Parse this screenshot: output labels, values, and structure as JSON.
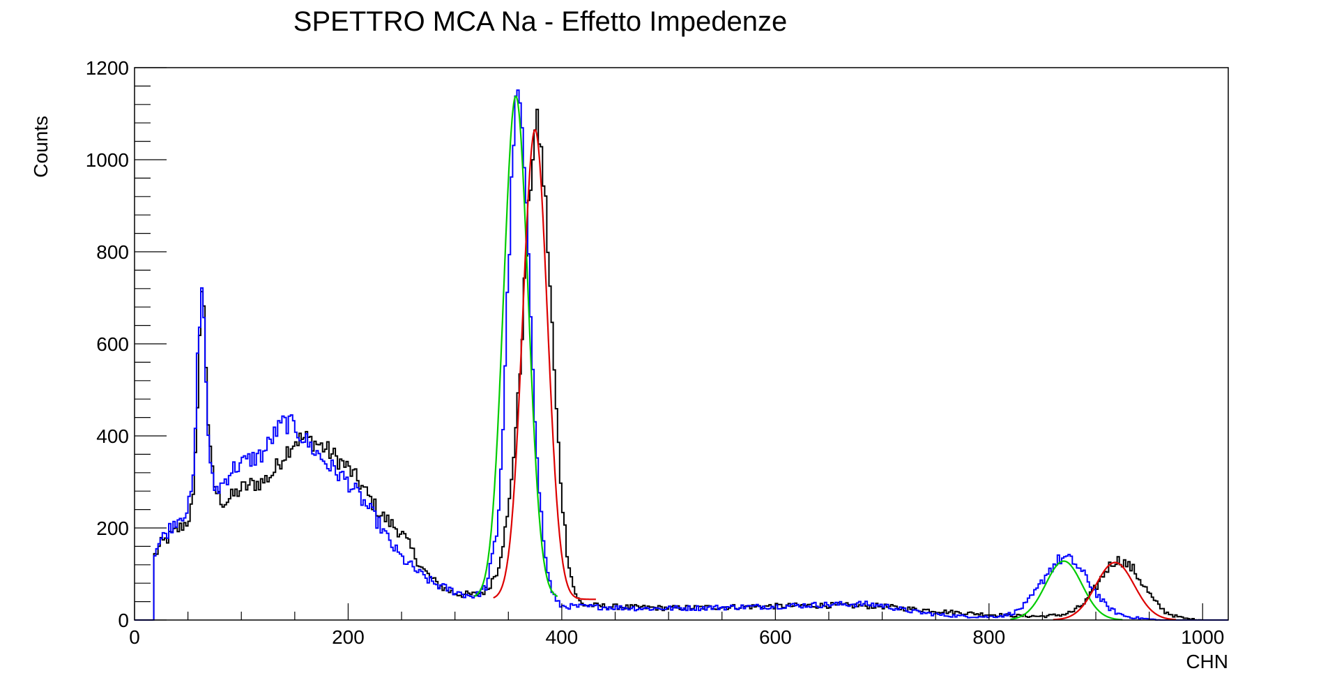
{
  "chart_data": {
    "type": "line",
    "title": "SPETTRO MCA Na - Effetto Impedenze",
    "xlabel": "CHN",
    "ylabel": "Counts",
    "xlim": [
      0,
      1024
    ],
    "ylim": [
      0,
      1200
    ],
    "x_ticks": [
      0,
      200,
      400,
      600,
      800,
      1000
    ],
    "y_ticks": [
      0,
      200,
      400,
      600,
      800,
      1000,
      1200
    ],
    "grid": false,
    "series": [
      {
        "color": "#000000",
        "step": true,
        "points": [
          [
            0,
            0
          ],
          [
            18,
            0
          ],
          [
            19,
            140
          ],
          [
            25,
            165
          ],
          [
            30,
            175
          ],
          [
            35,
            185
          ],
          [
            40,
            195
          ],
          [
            45,
            205
          ],
          [
            50,
            215
          ],
          [
            55,
            260
          ],
          [
            57,
            350
          ],
          [
            59,
            480
          ],
          [
            61,
            620
          ],
          [
            63,
            700
          ],
          [
            65,
            690
          ],
          [
            67,
            560
          ],
          [
            69,
            430
          ],
          [
            71,
            360
          ],
          [
            74,
            300
          ],
          [
            78,
            270
          ],
          [
            84,
            255
          ],
          [
            90,
            265
          ],
          [
            100,
            285
          ],
          [
            110,
            295
          ],
          [
            120,
            300
          ],
          [
            130,
            320
          ],
          [
            140,
            360
          ],
          [
            150,
            390
          ],
          [
            160,
            395
          ],
          [
            170,
            385
          ],
          [
            180,
            370
          ],
          [
            190,
            350
          ],
          [
            200,
            330
          ],
          [
            210,
            300
          ],
          [
            220,
            265
          ],
          [
            230,
            230
          ],
          [
            240,
            210
          ],
          [
            250,
            190
          ],
          [
            260,
            150
          ],
          [
            270,
            110
          ],
          [
            280,
            85
          ],
          [
            290,
            68
          ],
          [
            300,
            58
          ],
          [
            310,
            55
          ],
          [
            320,
            55
          ],
          [
            330,
            65
          ],
          [
            340,
            110
          ],
          [
            350,
            230
          ],
          [
            360,
            500
          ],
          [
            365,
            720
          ],
          [
            370,
            920
          ],
          [
            374,
            1050
          ],
          [
            377,
            1075
          ],
          [
            380,
            1040
          ],
          [
            385,
            900
          ],
          [
            390,
            680
          ],
          [
            395,
            450
          ],
          [
            400,
            270
          ],
          [
            405,
            150
          ],
          [
            410,
            80
          ],
          [
            415,
            45
          ],
          [
            420,
            33
          ],
          [
            440,
            30
          ],
          [
            460,
            28
          ],
          [
            500,
            26
          ],
          [
            550,
            28
          ],
          [
            600,
            30
          ],
          [
            650,
            32
          ],
          [
            700,
            30
          ],
          [
            720,
            25
          ],
          [
            740,
            22
          ],
          [
            760,
            18
          ],
          [
            780,
            15
          ],
          [
            800,
            12
          ],
          [
            830,
            9
          ],
          [
            850,
            8
          ],
          [
            870,
            12
          ],
          [
            880,
            20
          ],
          [
            890,
            38
          ],
          [
            900,
            70
          ],
          [
            910,
            110
          ],
          [
            918,
            130
          ],
          [
            925,
            128
          ],
          [
            935,
            110
          ],
          [
            945,
            75
          ],
          [
            955,
            40
          ],
          [
            965,
            18
          ],
          [
            975,
            8
          ],
          [
            985,
            3
          ],
          [
            1000,
            0
          ],
          [
            1024,
            0
          ]
        ]
      },
      {
        "color": "#0000ff",
        "step": true,
        "points": [
          [
            0,
            0
          ],
          [
            18,
            0
          ],
          [
            19,
            150
          ],
          [
            25,
            175
          ],
          [
            30,
            190
          ],
          [
            35,
            205
          ],
          [
            40,
            220
          ],
          [
            45,
            230
          ],
          [
            50,
            240
          ],
          [
            55,
            300
          ],
          [
            57,
            420
          ],
          [
            59,
            560
          ],
          [
            61,
            660
          ],
          [
            63,
            705
          ],
          [
            65,
            660
          ],
          [
            67,
            520
          ],
          [
            69,
            410
          ],
          [
            71,
            330
          ],
          [
            74,
            290
          ],
          [
            78,
            285
          ],
          [
            84,
            300
          ],
          [
            90,
            325
          ],
          [
            100,
            340
          ],
          [
            110,
            350
          ],
          [
            120,
            360
          ],
          [
            130,
            400
          ],
          [
            140,
            430
          ],
          [
            150,
            420
          ],
          [
            160,
            390
          ],
          [
            170,
            365
          ],
          [
            180,
            340
          ],
          [
            190,
            320
          ],
          [
            200,
            300
          ],
          [
            210,
            270
          ],
          [
            220,
            240
          ],
          [
            230,
            205
          ],
          [
            240,
            165
          ],
          [
            250,
            135
          ],
          [
            260,
            115
          ],
          [
            270,
            95
          ],
          [
            280,
            80
          ],
          [
            290,
            70
          ],
          [
            300,
            62
          ],
          [
            310,
            55
          ],
          [
            320,
            52
          ],
          [
            330,
            75
          ],
          [
            340,
            200
          ],
          [
            345,
            420
          ],
          [
            350,
            760
          ],
          [
            355,
            1050
          ],
          [
            358,
            1140
          ],
          [
            361,
            1120
          ],
          [
            365,
            980
          ],
          [
            370,
            720
          ],
          [
            375,
            450
          ],
          [
            380,
            250
          ],
          [
            385,
            130
          ],
          [
            390,
            70
          ],
          [
            395,
            40
          ],
          [
            400,
            30
          ],
          [
            440,
            28
          ],
          [
            480,
            25
          ],
          [
            520,
            26
          ],
          [
            560,
            28
          ],
          [
            600,
            30
          ],
          [
            640,
            33
          ],
          [
            680,
            35
          ],
          [
            700,
            32
          ],
          [
            720,
            22
          ],
          [
            740,
            15
          ],
          [
            760,
            10
          ],
          [
            780,
            8
          ],
          [
            800,
            7
          ],
          [
            815,
            10
          ],
          [
            825,
            18
          ],
          [
            835,
            35
          ],
          [
            845,
            65
          ],
          [
            855,
            105
          ],
          [
            865,
            130
          ],
          [
            872,
            135
          ],
          [
            880,
            125
          ],
          [
            890,
            95
          ],
          [
            900,
            60
          ],
          [
            910,
            30
          ],
          [
            920,
            15
          ],
          [
            930,
            7
          ],
          [
            945,
            3
          ],
          [
            960,
            0
          ],
          [
            1024,
            0
          ]
        ]
      },
      {
        "color": "#00cc00",
        "step": false,
        "gaussian": {
          "amp": 1090,
          "mean": 357,
          "sigma": 11.5,
          "base": 48,
          "range": [
            318,
            396
          ]
        }
      },
      {
        "color": "#dd0000",
        "step": false,
        "gaussian": {
          "amp": 1020,
          "mean": 375,
          "sigma": 11.5,
          "base": 45,
          "range": [
            336,
            432
          ]
        }
      },
      {
        "color": "#00cc00",
        "step": false,
        "gaussian": {
          "amp": 128,
          "mean": 870,
          "sigma": 17,
          "base": 0,
          "range": [
            820,
            925
          ]
        }
      },
      {
        "color": "#dd0000",
        "step": false,
        "gaussian": {
          "amp": 125,
          "mean": 918,
          "sigma": 18,
          "base": 0,
          "range": [
            860,
            975
          ]
        }
      }
    ]
  }
}
